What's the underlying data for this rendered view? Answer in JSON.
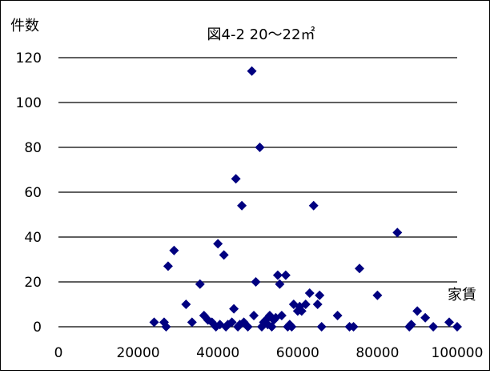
{
  "chart_data": {
    "type": "scatter",
    "title": "図4-2 20～22㎡",
    "xlabel": "家賃",
    "ylabel": "件数",
    "xlim": [
      0,
      100000
    ],
    "ylim": [
      0,
      120
    ],
    "x_ticks": [
      "0",
      "20000",
      "40000",
      "60000",
      "80000",
      "100000"
    ],
    "y_ticks": [
      "0",
      "20",
      "40",
      "60",
      "80",
      "100",
      "120"
    ],
    "grid": "horizontal",
    "marker": "diamond",
    "marker_color": "#000080",
    "points": [
      {
        "x": 24000,
        "y": 2
      },
      {
        "x": 26500,
        "y": 2
      },
      {
        "x": 27000,
        "y": 0
      },
      {
        "x": 27500,
        "y": 27
      },
      {
        "x": 29000,
        "y": 34
      },
      {
        "x": 32000,
        "y": 10
      },
      {
        "x": 33500,
        "y": 2
      },
      {
        "x": 35500,
        "y": 19
      },
      {
        "x": 36500,
        "y": 5
      },
      {
        "x": 37500,
        "y": 3
      },
      {
        "x": 38500,
        "y": 2
      },
      {
        "x": 39500,
        "y": 0
      },
      {
        "x": 40000,
        "y": 37
      },
      {
        "x": 40500,
        "y": 1
      },
      {
        "x": 41500,
        "y": 32
      },
      {
        "x": 42000,
        "y": 0
      },
      {
        "x": 42500,
        "y": 1
      },
      {
        "x": 43500,
        "y": 2
      },
      {
        "x": 44000,
        "y": 8
      },
      {
        "x": 44500,
        "y": 66
      },
      {
        "x": 45000,
        "y": 0
      },
      {
        "x": 45500,
        "y": 1
      },
      {
        "x": 46000,
        "y": 54
      },
      {
        "x": 46500,
        "y": 2
      },
      {
        "x": 47500,
        "y": 0
      },
      {
        "x": 48500,
        "y": 114
      },
      {
        "x": 49000,
        "y": 5
      },
      {
        "x": 49500,
        "y": 20
      },
      {
        "x": 50500,
        "y": 80
      },
      {
        "x": 51000,
        "y": 0
      },
      {
        "x": 51500,
        "y": 2
      },
      {
        "x": 52000,
        "y": 3
      },
      {
        "x": 52500,
        "y": 1
      },
      {
        "x": 53000,
        "y": 5
      },
      {
        "x": 53500,
        "y": 0
      },
      {
        "x": 54000,
        "y": 3
      },
      {
        "x": 54500,
        "y": 4
      },
      {
        "x": 55000,
        "y": 23
      },
      {
        "x": 55500,
        "y": 19
      },
      {
        "x": 56000,
        "y": 5
      },
      {
        "x": 57000,
        "y": 23
      },
      {
        "x": 57500,
        "y": 0
      },
      {
        "x": 58000,
        "y": 1
      },
      {
        "x": 58500,
        "y": 0
      },
      {
        "x": 59000,
        "y": 10
      },
      {
        "x": 60000,
        "y": 7
      },
      {
        "x": 60500,
        "y": 9
      },
      {
        "x": 61000,
        "y": 7
      },
      {
        "x": 62000,
        "y": 10
      },
      {
        "x": 63000,
        "y": 15
      },
      {
        "x": 64000,
        "y": 54
      },
      {
        "x": 65000,
        "y": 10
      },
      {
        "x": 65500,
        "y": 14
      },
      {
        "x": 66000,
        "y": 0
      },
      {
        "x": 70000,
        "y": 5
      },
      {
        "x": 73000,
        "y": 0
      },
      {
        "x": 74000,
        "y": 0
      },
      {
        "x": 75500,
        "y": 26
      },
      {
        "x": 80000,
        "y": 14
      },
      {
        "x": 85000,
        "y": 42
      },
      {
        "x": 88000,
        "y": 0
      },
      {
        "x": 88500,
        "y": 1
      },
      {
        "x": 90000,
        "y": 7
      },
      {
        "x": 92000,
        "y": 4
      },
      {
        "x": 94000,
        "y": 0
      },
      {
        "x": 98000,
        "y": 2
      },
      {
        "x": 100000,
        "y": 0
      }
    ]
  }
}
